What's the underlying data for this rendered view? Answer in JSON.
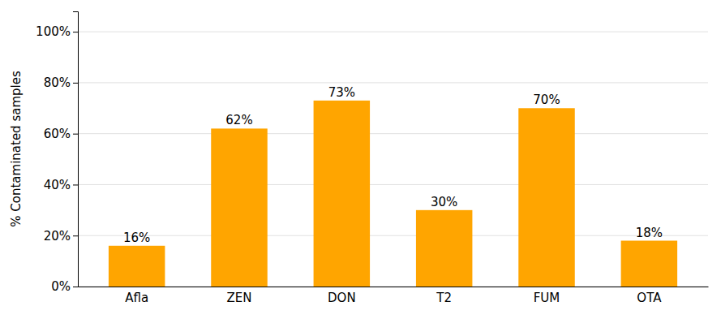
{
  "chart_data": {
    "type": "bar",
    "categories": [
      "Afla",
      "ZEN",
      "DON",
      "T2",
      "FUM",
      "OTA"
    ],
    "values": [
      16,
      62,
      73,
      30,
      70,
      18
    ],
    "value_labels": [
      "16%",
      "62%",
      "73%",
      "30%",
      "70%",
      "18%"
    ],
    "data_labels": true,
    "color": "#FFA500",
    "ylabel": "% Contaminated samples",
    "ylim": [
      0,
      108
    ],
    "yticks": [
      {
        "value": 0,
        "label": "0%"
      },
      {
        "value": 20,
        "label": "20%"
      },
      {
        "value": 40,
        "label": "40%"
      },
      {
        "value": 60,
        "label": "60%"
      },
      {
        "value": 80,
        "label": "80%"
      },
      {
        "value": 100,
        "label": "100%"
      }
    ],
    "grid": true
  }
}
